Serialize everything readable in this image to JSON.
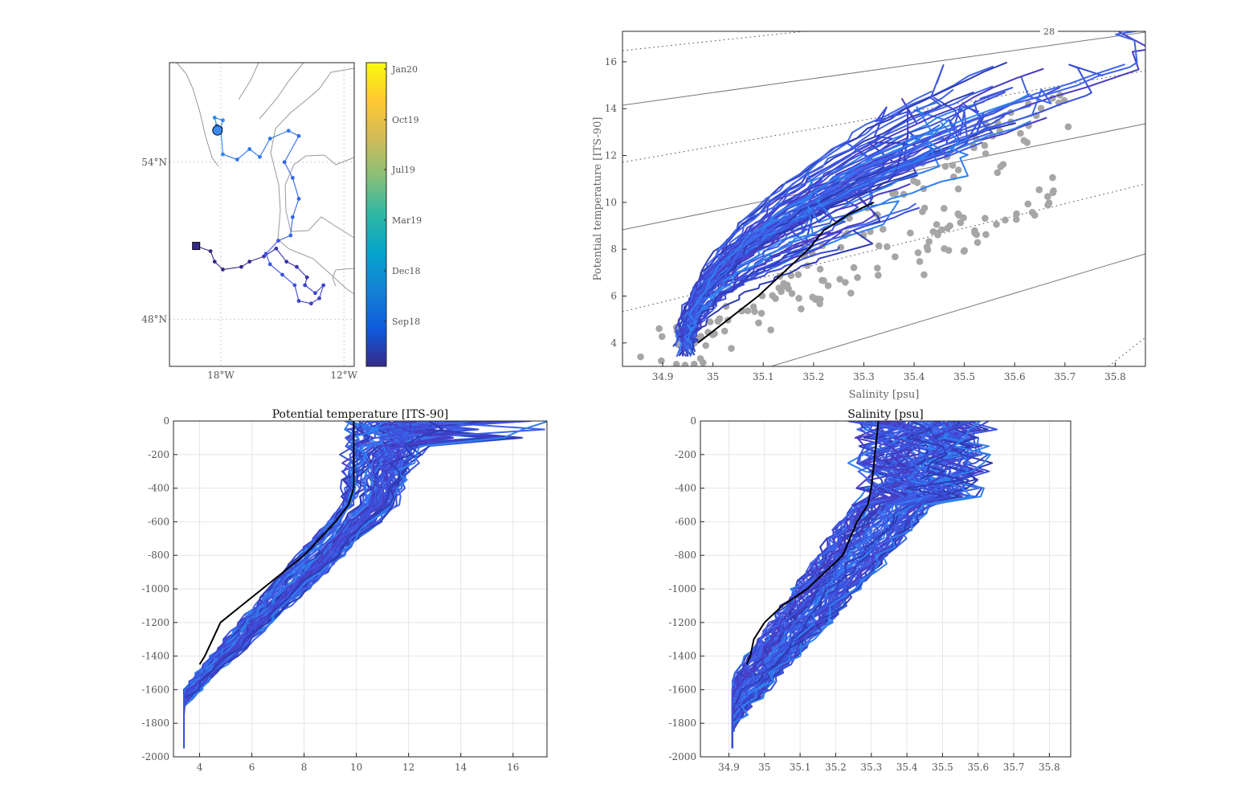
{
  "chart_data": [
    {
      "type": "map",
      "x_ticks": [
        "18°W",
        "12°W"
      ],
      "x_tick_values": [
        -18,
        -12
      ],
      "y_ticks": [
        "54°N",
        "48°N"
      ],
      "y_tick_values": [
        54,
        48
      ],
      "xlim": [
        -20.5,
        -11.5
      ],
      "ylim": [
        46.2,
        57.8
      ],
      "track": [
        [
          -19.2,
          50.8
        ],
        [
          -18.5,
          50.6
        ],
        [
          -18.3,
          50.2
        ],
        [
          -17.9,
          49.9
        ],
        [
          -17.0,
          50.0
        ],
        [
          -16.6,
          50.2
        ],
        [
          -15.9,
          50.4
        ],
        [
          -15.3,
          50.7
        ],
        [
          -14.8,
          50.2
        ],
        [
          -14.3,
          50.0
        ],
        [
          -13.8,
          49.6
        ],
        [
          -13.9,
          49.3
        ],
        [
          -13.4,
          49.0
        ],
        [
          -13.0,
          49.3
        ],
        [
          -13.2,
          48.8
        ],
        [
          -13.6,
          48.6
        ],
        [
          -14.2,
          48.7
        ],
        [
          -14.4,
          49.3
        ],
        [
          -15.0,
          49.7
        ],
        [
          -15.6,
          50.1
        ],
        [
          -15.8,
          50.5
        ],
        [
          -15.2,
          51.0
        ],
        [
          -14.6,
          51.2
        ],
        [
          -14.5,
          51.9
        ],
        [
          -14.2,
          52.6
        ],
        [
          -14.5,
          53.4
        ],
        [
          -14.9,
          54.0
        ],
        [
          -14.2,
          55.0
        ],
        [
          -14.7,
          55.2
        ],
        [
          -15.6,
          54.9
        ],
        [
          -16.1,
          54.2
        ],
        [
          -16.6,
          54.5
        ],
        [
          -17.2,
          54.1
        ],
        [
          -17.9,
          54.3
        ],
        [
          -18.0,
          55.3
        ],
        [
          -17.9,
          55.6
        ],
        [
          -18.3,
          55.7
        ],
        [
          -18.2,
          55.4
        ]
      ],
      "start_marker": "square",
      "end_marker": "circle",
      "colorbar": {
        "labels": [
          "Jan20",
          "Oct19",
          "Jul19",
          "Mar19",
          "Dec18",
          "Sep18"
        ],
        "colormap": "parula",
        "colors": [
          "#352a87",
          "#0f5cdd",
          "#1481d6",
          "#06a4ca",
          "#2eb7a4",
          "#87bf77",
          "#d1bb59",
          "#fec832",
          "#f9fb0e"
        ]
      }
    },
    {
      "type": "line",
      "xlabel": "Salinity [psu]",
      "ylabel": "Potential temperature [ITS-90]",
      "xlim": [
        34.82,
        35.86
      ],
      "ylim": [
        3.0,
        17.3
      ],
      "x_ticks": [
        "34.9",
        "35",
        "35.1",
        "35.2",
        "35.3",
        "35.4",
        "35.5",
        "35.6",
        "35.7",
        "35.8"
      ],
      "y_ticks": [
        "4",
        "6",
        "8",
        "10",
        "12",
        "14",
        "16"
      ],
      "isopycnal_label": "28",
      "mean_profile": {
        "color": "#000000",
        "x": [
          34.97,
          35.03,
          35.09,
          35.14,
          35.19,
          35.22,
          35.25,
          35.27,
          35.29,
          35.31,
          35.32
        ],
        "y": [
          4.0,
          5.0,
          6.0,
          7.0,
          8.0,
          8.8,
          9.2,
          9.5,
          9.7,
          9.9,
          10.0
        ]
      },
      "reference_points_color": "#a6a6a6",
      "profile_colors": [
        "#2e3bb5",
        "#3a4fd8",
        "#3f63ea",
        "#2f80f0",
        "#4a3cc4",
        "#3d55e0"
      ]
    },
    {
      "type": "line",
      "title": "Potential temperature [ITS-90]",
      "xlim": [
        3,
        17.3
      ],
      "ylim": [
        -2000,
        0
      ],
      "x_ticks": [
        "4",
        "6",
        "8",
        "10",
        "12",
        "14",
        "16"
      ],
      "y_ticks": [
        "0",
        "-200",
        "-400",
        "-600",
        "-800",
        "-1000",
        "-1200",
        "-1400",
        "-1600",
        "-1800",
        "-2000"
      ],
      "mean_profile": {
        "color": "#000000",
        "depth": [
          0,
          -200,
          -400,
          -500,
          -600,
          -700,
          -800,
          -900,
          -1000,
          -1100,
          -1200,
          -1300,
          -1400,
          -1450
        ],
        "value": [
          9.9,
          9.9,
          9.9,
          9.7,
          9.2,
          8.6,
          8.0,
          7.2,
          6.4,
          5.6,
          4.8,
          4.5,
          4.2,
          4.0
        ]
      }
    },
    {
      "type": "line",
      "title": "Salinity [psu]",
      "xlim": [
        34.82,
        35.86
      ],
      "ylim": [
        -2000,
        0
      ],
      "x_ticks": [
        "34.9",
        "35",
        "35.1",
        "35.2",
        "35.3",
        "35.4",
        "35.5",
        "35.6",
        "35.7",
        "35.8"
      ],
      "y_ticks": [
        "0",
        "-200",
        "-400",
        "-600",
        "-800",
        "-1000",
        "-1200",
        "-1400",
        "-1600",
        "-1800",
        "-2000"
      ],
      "mean_profile": {
        "color": "#000000",
        "depth": [
          0,
          -200,
          -400,
          -500,
          -600,
          -700,
          -800,
          -900,
          -1000,
          -1100,
          -1200,
          -1300,
          -1400,
          -1450
        ],
        "value": [
          35.32,
          35.31,
          35.3,
          35.29,
          35.26,
          35.24,
          35.22,
          35.17,
          35.12,
          35.05,
          35.0,
          34.97,
          34.96,
          34.95
        ]
      }
    }
  ]
}
